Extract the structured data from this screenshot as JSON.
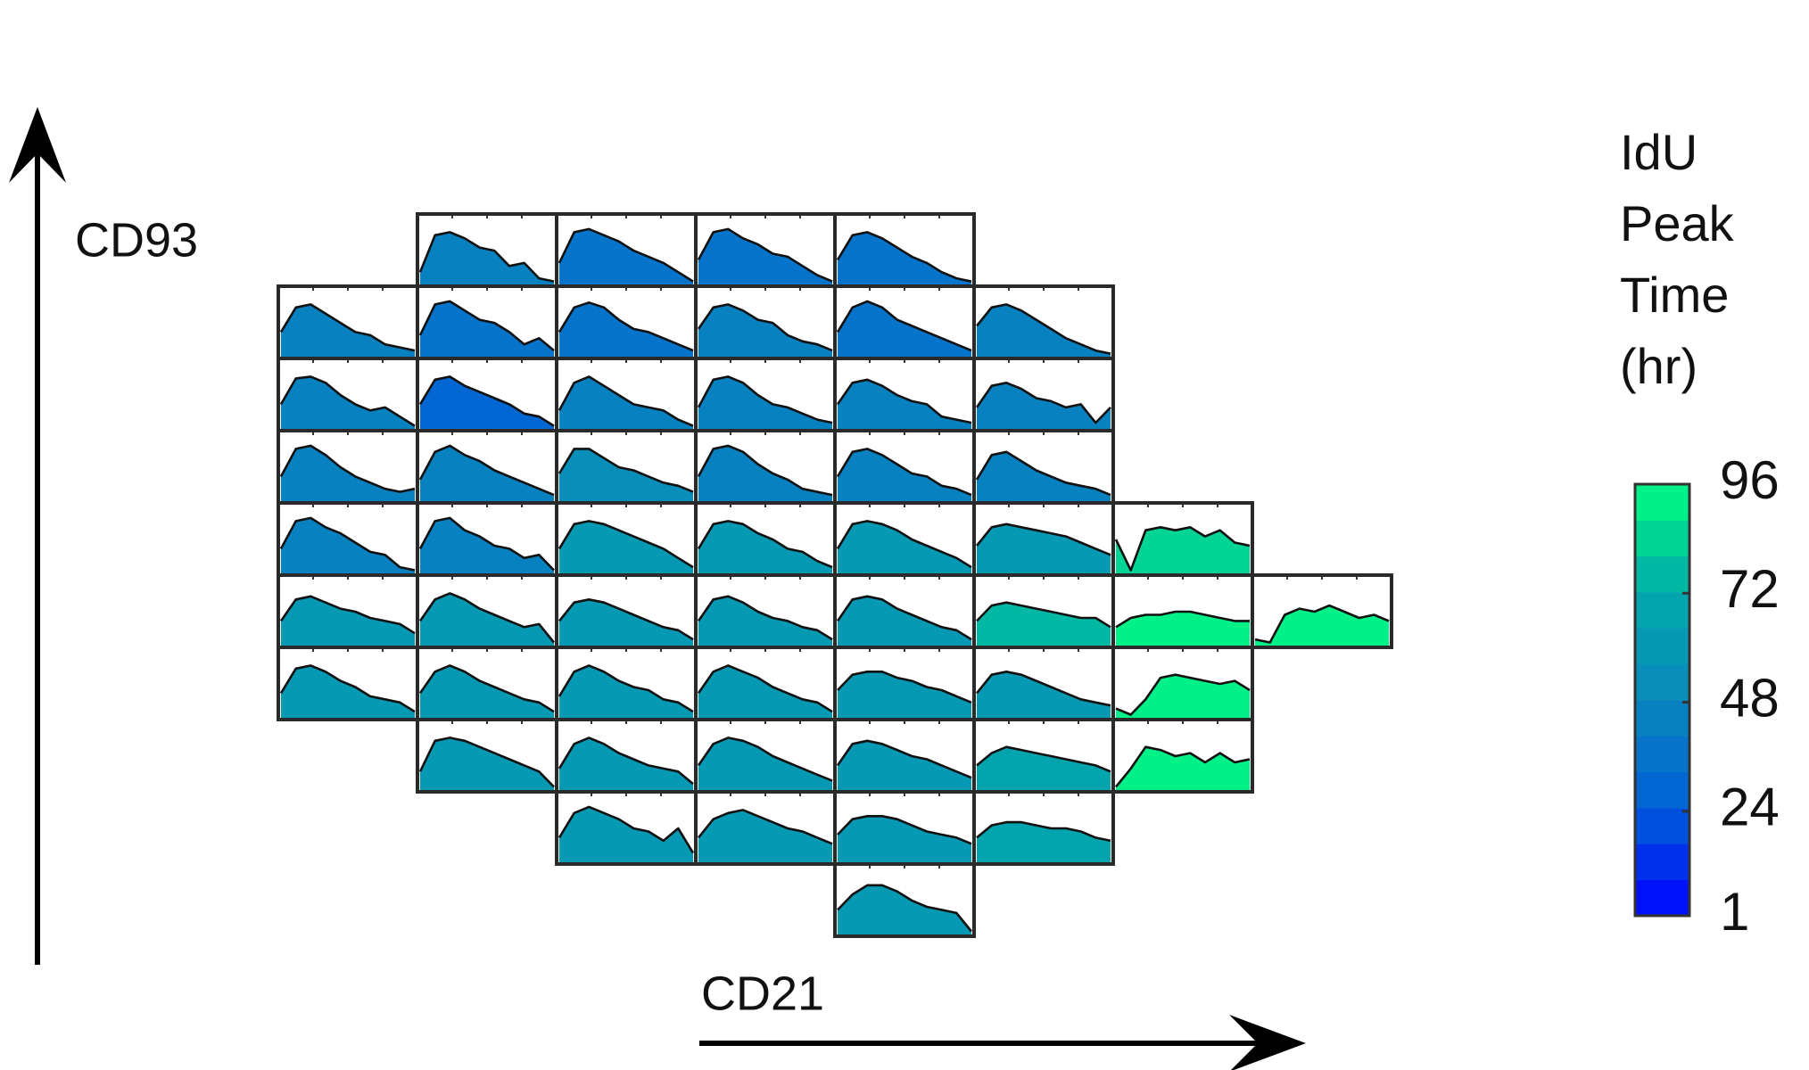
{
  "chart_data": {
    "type": "histogram_grid",
    "y_axis_label": "CD93",
    "x_axis_label": "CD21",
    "colorbar": {
      "label_lines": [
        "IdU",
        "Peak",
        "Time",
        "(hr)"
      ],
      "lim": [
        1,
        96
      ],
      "ticks": [
        1,
        24,
        48,
        72,
        96
      ],
      "levels": 12,
      "colormap": [
        "#0000ff",
        "#0060d8",
        "#0a88bc",
        "#00aaaa",
        "#00ff80"
      ]
    },
    "grid": [
      [
        null,
        {
          "value": 45,
          "curve": [
            20,
            80,
            85,
            75,
            60,
            55,
            30,
            35,
            10,
            5
          ]
        },
        {
          "value": 35,
          "curve": [
            35,
            85,
            90,
            80,
            70,
            55,
            45,
            35,
            20,
            5
          ]
        },
        {
          "value": 35,
          "curve": [
            40,
            85,
            90,
            75,
            65,
            50,
            45,
            30,
            15,
            5
          ]
        },
        {
          "value": 35,
          "curve": [
            40,
            80,
            85,
            75,
            60,
            45,
            35,
            20,
            10,
            5
          ]
        },
        null,
        null,
        null,
        null
      ],
      [
        {
          "value": 45,
          "curve": [
            40,
            80,
            85,
            70,
            55,
            40,
            35,
            20,
            15,
            10
          ]
        },
        {
          "value": 35,
          "curve": [
            35,
            85,
            90,
            75,
            60,
            55,
            40,
            20,
            30,
            10
          ]
        },
        {
          "value": 35,
          "curve": [
            40,
            80,
            88,
            80,
            60,
            45,
            40,
            30,
            20,
            10
          ]
        },
        {
          "value": 45,
          "curve": [
            45,
            80,
            85,
            75,
            60,
            55,
            35,
            25,
            20,
            10
          ]
        },
        {
          "value": 35,
          "curve": [
            40,
            80,
            90,
            80,
            60,
            50,
            40,
            30,
            20,
            10
          ]
        },
        {
          "value": 45,
          "curve": [
            50,
            80,
            85,
            75,
            60,
            45,
            30,
            20,
            10,
            5
          ]
        },
        null,
        null,
        null
      ],
      [
        {
          "value": 45,
          "curve": [
            40,
            82,
            85,
            75,
            55,
            40,
            30,
            35,
            20,
            5
          ]
        },
        {
          "value": 30,
          "curve": [
            40,
            80,
            85,
            70,
            60,
            50,
            40,
            25,
            20,
            5
          ]
        },
        {
          "value": 48,
          "curve": [
            30,
            75,
            85,
            70,
            55,
            40,
            35,
            30,
            15,
            5
          ]
        },
        {
          "value": 48,
          "curve": [
            35,
            80,
            85,
            75,
            55,
            40,
            35,
            25,
            15,
            10
          ]
        },
        {
          "value": 45,
          "curve": [
            40,
            75,
            80,
            70,
            55,
            45,
            40,
            20,
            15,
            10
          ]
        },
        {
          "value": 45,
          "curve": [
            35,
            70,
            75,
            65,
            50,
            45,
            35,
            40,
            10,
            35
          ]
        },
        null,
        null,
        null
      ],
      [
        {
          "value": 45,
          "curve": [
            40,
            85,
            90,
            75,
            55,
            40,
            30,
            20,
            15,
            20
          ]
        },
        {
          "value": 45,
          "curve": [
            35,
            80,
            90,
            75,
            65,
            50,
            40,
            30,
            20,
            10
          ]
        },
        {
          "value": 50,
          "curve": [
            45,
            85,
            85,
            70,
            55,
            50,
            40,
            30,
            25,
            15
          ]
        },
        {
          "value": 45,
          "curve": [
            40,
            85,
            90,
            80,
            60,
            45,
            35,
            20,
            15,
            10
          ]
        },
        {
          "value": 45,
          "curve": [
            40,
            80,
            85,
            75,
            60,
            45,
            40,
            25,
            20,
            10
          ]
        },
        {
          "value": 45,
          "curve": [
            35,
            75,
            80,
            65,
            50,
            40,
            30,
            25,
            20,
            10
          ]
        },
        null,
        null,
        null
      ],
      [
        {
          "value": 42,
          "curve": [
            40,
            85,
            90,
            75,
            65,
            50,
            35,
            30,
            10,
            5
          ]
        },
        {
          "value": 45,
          "curve": [
            40,
            85,
            90,
            70,
            60,
            45,
            40,
            25,
            30,
            5
          ]
        },
        {
          "value": 60,
          "curve": [
            40,
            80,
            85,
            80,
            70,
            60,
            50,
            40,
            25,
            10
          ]
        },
        {
          "value": 60,
          "curve": [
            40,
            80,
            85,
            80,
            65,
            55,
            40,
            35,
            20,
            10
          ]
        },
        {
          "value": 60,
          "curve": [
            40,
            80,
            85,
            80,
            70,
            55,
            45,
            35,
            25,
            10
          ]
        },
        {
          "value": 62,
          "curve": [
            45,
            75,
            80,
            75,
            70,
            65,
            60,
            50,
            40,
            30
          ]
        },
        {
          "value": 84,
          "curve": [
            55,
            5,
            70,
            75,
            70,
            75,
            60,
            70,
            50,
            45
          ]
        },
        null,
        null
      ],
      [
        {
          "value": 60,
          "curve": [
            40,
            75,
            80,
            70,
            60,
            55,
            45,
            40,
            35,
            20
          ]
        },
        {
          "value": 60,
          "curve": [
            40,
            75,
            85,
            75,
            60,
            50,
            40,
            30,
            35,
            5
          ]
        },
        {
          "value": 60,
          "curve": [
            40,
            70,
            75,
            70,
            60,
            50,
            40,
            30,
            25,
            10
          ]
        },
        {
          "value": 60,
          "curve": [
            40,
            75,
            80,
            70,
            55,
            45,
            40,
            30,
            25,
            10
          ]
        },
        {
          "value": 60,
          "curve": [
            40,
            75,
            80,
            75,
            60,
            50,
            40,
            30,
            25,
            10
          ]
        },
        {
          "value": 75,
          "curve": [
            40,
            65,
            70,
            65,
            60,
            55,
            50,
            45,
            45,
            30
          ]
        },
        {
          "value": 96,
          "curve": [
            30,
            45,
            50,
            50,
            55,
            55,
            50,
            45,
            40,
            40
          ]
        },
        {
          "value": 92,
          "curve": [
            10,
            5,
            50,
            60,
            55,
            65,
            55,
            45,
            50,
            40
          ]
        },
        null
      ],
      [
        {
          "value": 60,
          "curve": [
            40,
            80,
            85,
            75,
            60,
            50,
            35,
            30,
            25,
            10
          ]
        },
        {
          "value": 60,
          "curve": [
            40,
            75,
            85,
            75,
            60,
            50,
            40,
            30,
            25,
            10
          ]
        },
        {
          "value": 60,
          "curve": [
            35,
            75,
            85,
            75,
            60,
            50,
            45,
            30,
            25,
            10
          ]
        },
        {
          "value": 60,
          "curve": [
            40,
            75,
            85,
            75,
            65,
            50,
            40,
            30,
            25,
            10
          ]
        },
        {
          "value": 60,
          "curve": [
            45,
            70,
            75,
            75,
            65,
            60,
            50,
            45,
            35,
            25
          ]
        },
        {
          "value": 58,
          "curve": [
            40,
            70,
            75,
            70,
            60,
            50,
            40,
            30,
            25,
            20
          ]
        },
        {
          "value": 94,
          "curve": [
            15,
            5,
            30,
            65,
            70,
            65,
            60,
            55,
            60,
            45
          ]
        },
        null,
        null
      ],
      [
        null,
        {
          "value": 62,
          "curve": [
            30,
            80,
            85,
            80,
            70,
            60,
            50,
            40,
            30,
            5
          ]
        },
        {
          "value": 60,
          "curve": [
            35,
            75,
            85,
            75,
            60,
            50,
            40,
            35,
            30,
            10
          ]
        },
        {
          "value": 62,
          "curve": [
            40,
            75,
            85,
            80,
            70,
            55,
            45,
            35,
            25,
            15
          ]
        },
        {
          "value": 60,
          "curve": [
            40,
            75,
            80,
            75,
            65,
            55,
            50,
            40,
            30,
            20
          ]
        },
        {
          "value": 70,
          "curve": [
            40,
            60,
            70,
            65,
            60,
            55,
            50,
            45,
            40,
            30
          ]
        },
        {
          "value": 94,
          "curve": [
            5,
            35,
            70,
            65,
            55,
            60,
            45,
            60,
            45,
            50
          ]
        },
        null,
        null
      ],
      [
        null,
        null,
        {
          "value": 62,
          "curve": [
            40,
            80,
            90,
            80,
            70,
            55,
            50,
            35,
            55,
            15
          ]
        },
        {
          "value": 62,
          "curve": [
            40,
            70,
            80,
            85,
            75,
            65,
            55,
            50,
            40,
            30
          ]
        },
        {
          "value": 62,
          "curve": [
            45,
            70,
            75,
            75,
            70,
            60,
            50,
            45,
            40,
            30
          ]
        },
        {
          "value": 72,
          "curve": [
            40,
            60,
            65,
            65,
            60,
            55,
            55,
            50,
            40,
            35
          ]
        },
        null,
        null,
        null
      ],
      [
        null,
        null,
        null,
        null,
        {
          "value": 62,
          "curve": [
            40,
            65,
            80,
            80,
            70,
            55,
            45,
            40,
            35,
            5
          ]
        },
        null,
        null,
        null,
        null
      ]
    ]
  }
}
